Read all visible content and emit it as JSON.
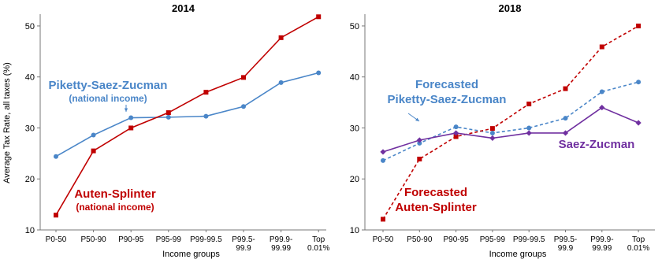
{
  "chart_data": [
    {
      "type": "line",
      "title": "2014",
      "xlabel": "Income groups",
      "ylabel": "Average Tax Rate, all taxes (%)",
      "categories": [
        [
          "P0-50"
        ],
        [
          "P50-90"
        ],
        [
          "P90-95"
        ],
        [
          "P95-99"
        ],
        [
          "P99-99.5"
        ],
        [
          "P99.5-",
          "99.9"
        ],
        [
          "P99.9-",
          "99.99"
        ],
        [
          "Top",
          "0.01%"
        ]
      ],
      "ylim": [
        10,
        52
      ],
      "yticks": [
        10,
        20,
        30,
        40,
        50
      ],
      "grid": false,
      "series": [
        {
          "label_lines": [
            "Piketty-Saez-Zucman",
            "(national income)"
          ],
          "color": "#4a86c8",
          "marker": "circle",
          "dash": "solid",
          "values": [
            24.4,
            28.6,
            32.0,
            32.1,
            32.3,
            34.2,
            38.9,
            40.8
          ]
        },
        {
          "label_lines": [
            "Auten-Splinter",
            "(national income)"
          ],
          "color": "#c00000",
          "marker": "square",
          "dash": "solid",
          "values": [
            12.9,
            25.5,
            30.0,
            33.0,
            37.0,
            39.9,
            47.7,
            51.8
          ]
        }
      ]
    },
    {
      "type": "line",
      "title": "2018",
      "xlabel": "Income groups",
      "categories": [
        [
          "P0-50"
        ],
        [
          "P50-90"
        ],
        [
          "P90-95"
        ],
        [
          "P95-99"
        ],
        [
          "P99-99.5"
        ],
        [
          "P99.5-",
          "99.9"
        ],
        [
          "P99.9-",
          "99.99"
        ],
        [
          "Top",
          "0.01%"
        ]
      ],
      "ylim": [
        10,
        52
      ],
      "yticks": [
        10,
        20,
        30,
        40,
        50
      ],
      "grid": false,
      "series": [
        {
          "label_lines": [
            "Forecasted",
            "Piketty-Saez-Zucman"
          ],
          "color": "#4a86c8",
          "marker": "circle",
          "dash": "dashed",
          "values": [
            23.6,
            27.0,
            30.2,
            29.0,
            30.0,
            31.9,
            37.1,
            39.0
          ]
        },
        {
          "label_lines": [
            "Forecasted",
            "Auten-Splinter"
          ],
          "color": "#c00000",
          "marker": "square",
          "dash": "dashed",
          "values": [
            12.1,
            23.9,
            28.3,
            29.9,
            34.7,
            37.7,
            45.9,
            50.0
          ]
        },
        {
          "label_lines": [
            "Saez-Zucman"
          ],
          "color": "#7030a0",
          "marker": "diamond",
          "dash": "solid",
          "values": [
            25.3,
            27.6,
            29.0,
            28.0,
            29.0,
            29.0,
            34.0,
            31.0
          ]
        }
      ]
    }
  ]
}
